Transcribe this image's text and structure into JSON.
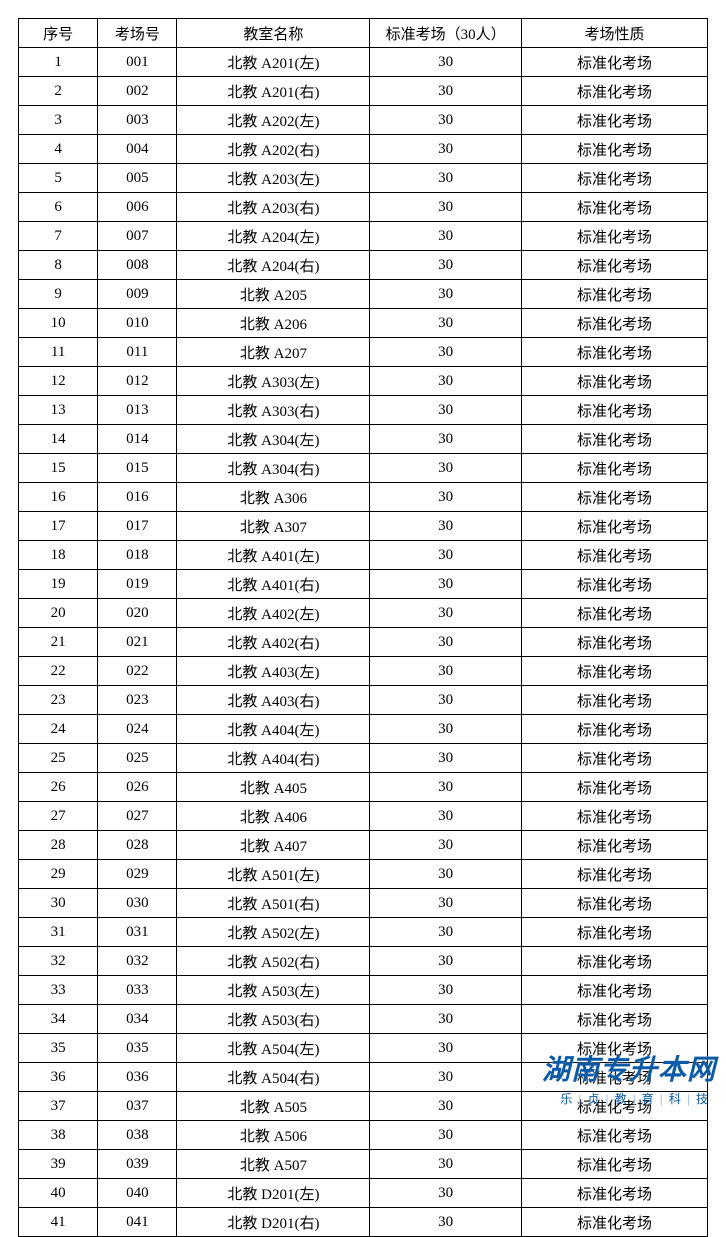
{
  "table": {
    "columns": [
      "序号",
      "考场号",
      "教室名称",
      "标准考场（30人）",
      "考场性质"
    ],
    "column_widths_pct": [
      11.5,
      11.5,
      28,
      22,
      27
    ],
    "border_color": "#000000",
    "text_color": "#000000",
    "background_color": "#ffffff",
    "font_size_pt": 11,
    "rows": [
      [
        "1",
        "001",
        "北教 A201(左)",
        "30",
        "标准化考场"
      ],
      [
        "2",
        "002",
        "北教 A201(右)",
        "30",
        "标准化考场"
      ],
      [
        "3",
        "003",
        "北教 A202(左)",
        "30",
        "标准化考场"
      ],
      [
        "4",
        "004",
        "北教 A202(右)",
        "30",
        "标准化考场"
      ],
      [
        "5",
        "005",
        "北教 A203(左)",
        "30",
        "标准化考场"
      ],
      [
        "6",
        "006",
        "北教 A203(右)",
        "30",
        "标准化考场"
      ],
      [
        "7",
        "007",
        "北教 A204(左)",
        "30",
        "标准化考场"
      ],
      [
        "8",
        "008",
        "北教 A204(右)",
        "30",
        "标准化考场"
      ],
      [
        "9",
        "009",
        "北教 A205",
        "30",
        "标准化考场"
      ],
      [
        "10",
        "010",
        "北教 A206",
        "30",
        "标准化考场"
      ],
      [
        "11",
        "011",
        "北教 A207",
        "30",
        "标准化考场"
      ],
      [
        "12",
        "012",
        "北教 A303(左)",
        "30",
        "标准化考场"
      ],
      [
        "13",
        "013",
        "北教 A303(右)",
        "30",
        "标准化考场"
      ],
      [
        "14",
        "014",
        "北教 A304(左)",
        "30",
        "标准化考场"
      ],
      [
        "15",
        "015",
        "北教 A304(右)",
        "30",
        "标准化考场"
      ],
      [
        "16",
        "016",
        "北教 A306",
        "30",
        "标准化考场"
      ],
      [
        "17",
        "017",
        "北教 A307",
        "30",
        "标准化考场"
      ],
      [
        "18",
        "018",
        "北教 A401(左)",
        "30",
        "标准化考场"
      ],
      [
        "19",
        "019",
        "北教 A401(右)",
        "30",
        "标准化考场"
      ],
      [
        "20",
        "020",
        "北教 A402(左)",
        "30",
        "标准化考场"
      ],
      [
        "21",
        "021",
        "北教 A402(右)",
        "30",
        "标准化考场"
      ],
      [
        "22",
        "022",
        "北教 A403(左)",
        "30",
        "标准化考场"
      ],
      [
        "23",
        "023",
        "北教 A403(右)",
        "30",
        "标准化考场"
      ],
      [
        "24",
        "024",
        "北教 A404(左)",
        "30",
        "标准化考场"
      ],
      [
        "25",
        "025",
        "北教 A404(右)",
        "30",
        "标准化考场"
      ],
      [
        "26",
        "026",
        "北教 A405",
        "30",
        "标准化考场"
      ],
      [
        "27",
        "027",
        "北教 A406",
        "30",
        "标准化考场"
      ],
      [
        "28",
        "028",
        "北教 A407",
        "30",
        "标准化考场"
      ],
      [
        "29",
        "029",
        "北教 A501(左)",
        "30",
        "标准化考场"
      ],
      [
        "30",
        "030",
        "北教 A501(右)",
        "30",
        "标准化考场"
      ],
      [
        "31",
        "031",
        "北教 A502(左)",
        "30",
        "标准化考场"
      ],
      [
        "32",
        "032",
        "北教 A502(右)",
        "30",
        "标准化考场"
      ],
      [
        "33",
        "033",
        "北教 A503(左)",
        "30",
        "标准化考场"
      ],
      [
        "34",
        "034",
        "北教 A503(右)",
        "30",
        "标准化考场"
      ],
      [
        "35",
        "035",
        "北教 A504(左)",
        "30",
        "标准化考场"
      ],
      [
        "36",
        "036",
        "北教 A504(右)",
        "30",
        "标准化考场"
      ],
      [
        "37",
        "037",
        "北教 A505",
        "30",
        "标准化考场"
      ],
      [
        "38",
        "038",
        "北教 A506",
        "30",
        "标准化考场"
      ],
      [
        "39",
        "039",
        "北教 A507",
        "30",
        "标准化考场"
      ],
      [
        "40",
        "040",
        "北教 D201(左)",
        "30",
        "标准化考场"
      ],
      [
        "41",
        "041",
        "北教 D201(右)",
        "30",
        "标准化考场"
      ]
    ]
  },
  "watermark": {
    "main_text": "湖南专升本网",
    "sub_parts": [
      "乐",
      "贞",
      "教",
      "育",
      "科",
      "技"
    ],
    "main_color": "#0b5aa6",
    "sub_color": "#0b5aa6",
    "sep_color": "#9ec7e8",
    "main_fontsize_pt": 21,
    "sub_fontsize_pt": 9
  }
}
